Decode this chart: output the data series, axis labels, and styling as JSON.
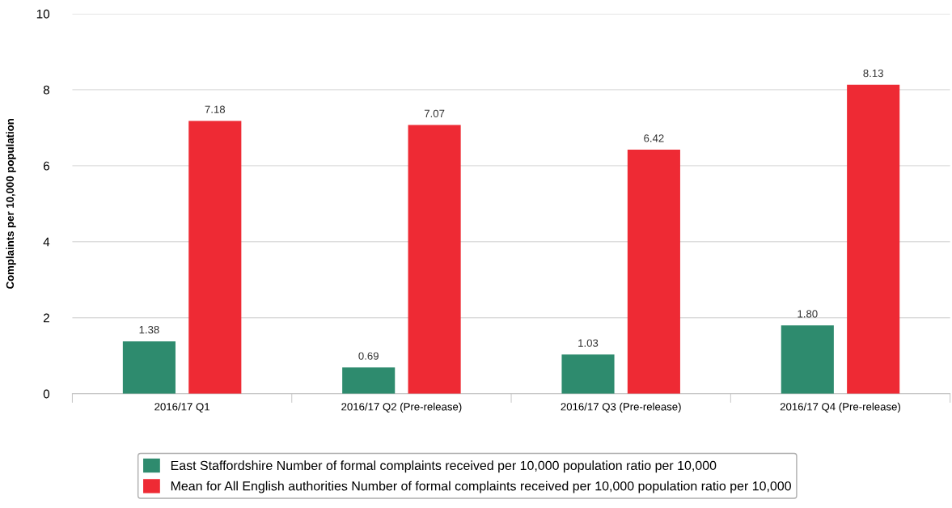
{
  "chart_data": {
    "type": "bar",
    "ylabel": "Complaints per 10,000 population",
    "categories": [
      "2016/17 Q1",
      "2016/17 Q2 (Pre-release)",
      "2016/17 Q3 (Pre-release)",
      "2016/17 Q4 (Pre-release)"
    ],
    "series": [
      {
        "name": "East Staffordshire Number of formal complaints received per 10,000 population ratio per 10,000",
        "color": "#2e8b6e",
        "values": [
          1.38,
          0.69,
          1.03,
          1.8
        ],
        "value_labels": [
          "1.38",
          "0.69",
          "1.03",
          "1.80"
        ]
      },
      {
        "name": "Mean for All English authorities Number of formal complaints received per 10,000 population ratio per 10,000",
        "color": "#ee2a34",
        "values": [
          7.18,
          7.07,
          6.42,
          8.13
        ],
        "value_labels": [
          "7.18",
          "7.07",
          "6.42",
          "8.13"
        ]
      }
    ],
    "ylim": [
      0,
      10
    ],
    "yticks": [
      0,
      2,
      4,
      6,
      8,
      10
    ],
    "grid": "y",
    "legend": "bottom"
  }
}
